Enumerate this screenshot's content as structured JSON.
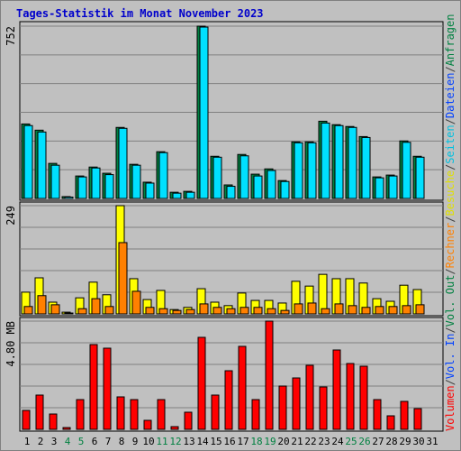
{
  "chart_data": [
    {
      "type": "bar",
      "title": "Tages-Statistik im Monat November 2023",
      "ylim": [
        0,
        752
      ],
      "yticks": [
        752
      ],
      "series": [
        {
          "color": "#008040",
          "values": [
            325,
            298,
            153,
            8,
            98,
            137,
            110,
            310,
            149,
            71,
            204,
            27,
            31,
            752,
            184,
            59,
            192,
            106,
            129,
            78,
            247,
            247,
            337,
            322,
            314,
            270,
            94,
            102,
            251,
            184,
            null
          ]
        },
        {
          "color": "#00e0ff",
          "values": [
            318,
            290,
            145,
            6,
            94,
            133,
            104,
            306,
            145,
            67,
            200,
            23,
            27,
            748,
            180,
            53,
            186,
            98,
            122,
            74,
            243,
            243,
            329,
            318,
            310,
            266,
            90,
            98,
            245,
            180,
            null
          ]
        }
      ]
    },
    {
      "type": "bar",
      "ylim": [
        0,
        249
      ],
      "yticks": [
        249
      ],
      "series": [
        {
          "color": "#ffff00",
          "values": [
            50,
            83,
            27,
            4,
            37,
            73,
            44,
            249,
            81,
            33,
            54,
            10,
            15,
            58,
            27,
            19,
            48,
            31,
            31,
            25,
            75,
            64,
            91,
            81,
            81,
            71,
            35,
            29,
            66,
            56,
            null
          ]
        },
        {
          "color": "#ff8000",
          "values": [
            17,
            42,
            21,
            2,
            12,
            35,
            17,
            164,
            52,
            15,
            12,
            8,
            10,
            23,
            15,
            12,
            15,
            15,
            12,
            8,
            23,
            25,
            12,
            23,
            19,
            15,
            17,
            17,
            19,
            21,
            null
          ]
        }
      ]
    },
    {
      "type": "bar",
      "ylim": [
        0,
        4.8
      ],
      "yticks": [
        {
          "value": 4.8,
          "label": "4.80 MB"
        }
      ],
      "series": [
        {
          "color": "#ff0000",
          "values": [
            0.84,
            1.52,
            0.68,
            0.08,
            1.32,
            3.76,
            3.6,
            1.44,
            1.32,
            0.4,
            1.32,
            0.12,
            0.76,
            4.08,
            1.52,
            2.6,
            3.68,
            1.32,
            4.8,
            1.92,
            2.28,
            2.84,
            1.88,
            3.52,
            2.92,
            2.8,
            1.32,
            0.6,
            1.24,
            0.92,
            null
          ]
        }
      ],
      "categories": [
        "1",
        "2",
        "3",
        "4",
        "5",
        "6",
        "7",
        "8",
        "9",
        "10",
        "11",
        "12",
        "13",
        "14",
        "15",
        "16",
        "17",
        "18",
        "19",
        "20",
        "21",
        "22",
        "23",
        "24",
        "25",
        "26",
        "27",
        "28",
        "29",
        "30",
        "31"
      ],
      "category_colors": [
        "#000",
        "#000",
        "#000",
        "#008040",
        "#008040",
        "#000",
        "#000",
        "#000",
        "#000",
        "#000",
        "#008040",
        "#008040",
        "#000",
        "#000",
        "#000",
        "#000",
        "#000",
        "#008040",
        "#008040",
        "#000",
        "#000",
        "#000",
        "#000",
        "#000",
        "#008040",
        "#008040",
        "#000",
        "#000",
        "#000",
        "#000",
        "#000"
      ]
    }
  ],
  "legend": [
    {
      "text": "Volumen",
      "color": "#ff0000"
    },
    {
      "text": "Vol. In",
      "color": "#0040ff"
    },
    {
      "text": "Vol. Out",
      "color": "#008040"
    },
    {
      "text": "Rechner",
      "color": "#ff8000"
    },
    {
      "text": "Besuche",
      "color": "#e0e000"
    },
    {
      "text": "Seiten",
      "color": "#00c0e0"
    },
    {
      "text": "Dateien",
      "color": "#0040ff"
    },
    {
      "text": "Anfragen",
      "color": "#008040"
    }
  ],
  "legend_separator": "/"
}
